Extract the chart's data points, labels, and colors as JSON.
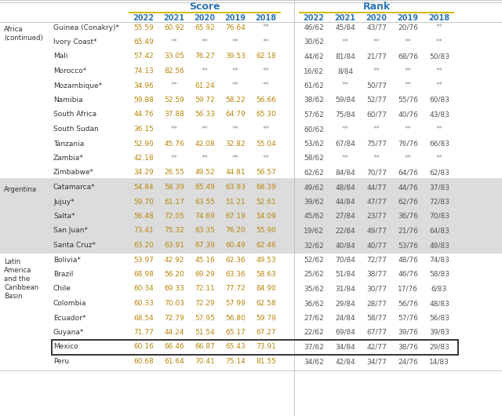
{
  "title_score": "Score",
  "title_rank": "Rank",
  "years": [
    "2022",
    "2021",
    "2020",
    "2019",
    "2018"
  ],
  "header_color": "#2E75B6",
  "bg_color": "#FFFFFF",
  "argentina_bg": "#DCDCDC",
  "rows": [
    {
      "region": "Africa\n(continued)",
      "country": "Guinea (Conakry)*",
      "scores": [
        "55.59",
        "60.92",
        "65.92",
        "76.64",
        "**"
      ],
      "ranks": [
        "46/62",
        "45/84",
        "43/77",
        "20/76",
        "**"
      ],
      "highlight": false,
      "mexico": false
    },
    {
      "region": "",
      "country": "Ivory Coast*",
      "scores": [
        "65.49",
        "**",
        "**",
        "**",
        "**"
      ],
      "ranks": [
        "30/62",
        "**",
        "**",
        "**",
        "**"
      ],
      "highlight": false,
      "mexico": false
    },
    {
      "region": "",
      "country": "Mali",
      "scores": [
        "57.42",
        "33.05",
        "76.27",
        "39.53",
        "62.18"
      ],
      "ranks": [
        "44/62",
        "81/84",
        "21/77",
        "68/76",
        "50/83"
      ],
      "highlight": false,
      "mexico": false
    },
    {
      "region": "",
      "country": "Morocco*",
      "scores": [
        "74.13",
        "82.56",
        "**",
        "**",
        "**"
      ],
      "ranks": [
        "16/62",
        "8/84",
        "**",
        "**",
        "**"
      ],
      "highlight": false,
      "mexico": false
    },
    {
      "region": "",
      "country": "Mozambique*",
      "scores": [
        "34.96",
        "**",
        "61.24",
        "**",
        "**"
      ],
      "ranks": [
        "61/62",
        "**",
        "50/77",
        "**",
        "**"
      ],
      "highlight": false,
      "mexico": false
    },
    {
      "region": "",
      "country": "Namibia",
      "scores": [
        "59.88",
        "52.59",
        "59.72",
        "58.22",
        "56.66"
      ],
      "ranks": [
        "38/62",
        "59/84",
        "52/77",
        "55/76",
        "60/83"
      ],
      "highlight": false,
      "mexico": false
    },
    {
      "region": "",
      "country": "South Africa",
      "scores": [
        "44.76",
        "37.88",
        "56.33",
        "64.79",
        "65.30"
      ],
      "ranks": [
        "57/62",
        "75/84",
        "60/77",
        "40/76",
        "43/83"
      ],
      "highlight": false,
      "mexico": false
    },
    {
      "region": "",
      "country": "South Sudan",
      "scores": [
        "36.15",
        "**",
        "**",
        "**",
        "**"
      ],
      "ranks": [
        "60/62",
        "**",
        "**",
        "**",
        "**"
      ],
      "highlight": false,
      "mexico": false
    },
    {
      "region": "",
      "country": "Tanzania",
      "scores": [
        "52.90",
        "45.76",
        "42.08",
        "32.82",
        "55.04"
      ],
      "ranks": [
        "53/62",
        "67/84",
        "75/77",
        "76/76",
        "66/83"
      ],
      "highlight": false,
      "mexico": false
    },
    {
      "region": "",
      "country": "Zambia*",
      "scores": [
        "42.18",
        "**",
        "**",
        "**",
        "**"
      ],
      "ranks": [
        "58/62",
        "**",
        "**",
        "**",
        "**"
      ],
      "highlight": false,
      "mexico": false
    },
    {
      "region": "",
      "country": "Zimbabwe*",
      "scores": [
        "34.29",
        "26.55",
        "49.52",
        "44.81",
        "56.57"
      ],
      "ranks": [
        "62/62",
        "84/84",
        "70/77",
        "64/76",
        "62/83"
      ],
      "highlight": false,
      "mexico": false
    },
    {
      "region": "Argentina",
      "country": "Catamarca*",
      "scores": [
        "54.84",
        "58.39",
        "65.49",
        "63.93",
        "68.39"
      ],
      "ranks": [
        "49/62",
        "48/84",
        "44/77",
        "44/76",
        "37/83"
      ],
      "highlight": true,
      "mexico": false
    },
    {
      "region": "",
      "country": "Jujuy*",
      "scores": [
        "59.70",
        "61.17",
        "63.55",
        "51.21",
        "52.61"
      ],
      "ranks": [
        "39/62",
        "44/84",
        "47/77",
        "62/76",
        "72/83"
      ],
      "highlight": true,
      "mexico": false
    },
    {
      "region": "",
      "country": "Salta*",
      "scores": [
        "56.48",
        "72.05",
        "74.69",
        "67.19",
        "54.09"
      ],
      "ranks": [
        "45/62",
        "27/84",
        "23/77",
        "36/76",
        "70/83"
      ],
      "highlight": true,
      "mexico": false
    },
    {
      "region": "",
      "country": "San Juan*",
      "scores": [
        "73.41",
        "75.32",
        "63.35",
        "76.20",
        "55.90"
      ],
      "ranks": [
        "19/62",
        "22/84",
        "49/77",
        "21/76",
        "64/83"
      ],
      "highlight": true,
      "mexico": false
    },
    {
      "region": "",
      "country": "Santa Cruz*",
      "scores": [
        "63.20",
        "63.91",
        "67.39",
        "60.49",
        "62.46"
      ],
      "ranks": [
        "32/62",
        "40/84",
        "40/77",
        "53/76",
        "49/83"
      ],
      "highlight": true,
      "mexico": false
    },
    {
      "region": "Latin\nAmerica\nand the\nCaribbean\nBasin",
      "country": "Bolivia*",
      "scores": [
        "53.97",
        "42.92",
        "45.16",
        "62.36",
        "49.53"
      ],
      "ranks": [
        "52/62",
        "70/84",
        "72/77",
        "48/76",
        "74/83"
      ],
      "highlight": false,
      "mexico": false
    },
    {
      "region": "",
      "country": "Brazil",
      "scores": [
        "68.98",
        "56.20",
        "69.29",
        "63.36",
        "58.63"
      ],
      "ranks": [
        "25/62",
        "51/84",
        "38/77",
        "46/76",
        "58/83"
      ],
      "highlight": false,
      "mexico": false
    },
    {
      "region": "",
      "country": "Chile",
      "scores": [
        "60.34",
        "69.33",
        "72.11",
        "77.72",
        "84.90"
      ],
      "ranks": [
        "35/62",
        "31/84",
        "30/77",
        "17/76",
        "6/83"
      ],
      "highlight": false,
      "mexico": false
    },
    {
      "region": "",
      "country": "Colombia",
      "scores": [
        "60.33",
        "70.03",
        "72.29",
        "57.99",
        "62.58"
      ],
      "ranks": [
        "36/62",
        "29/84",
        "28/77",
        "56/76",
        "48/83"
      ],
      "highlight": false,
      "mexico": false
    },
    {
      "region": "",
      "country": "Ecuador*",
      "scores": [
        "68.54",
        "72.79",
        "57.95",
        "56.80",
        "59.79"
      ],
      "ranks": [
        "27/62",
        "24/84",
        "58/77",
        "57/76",
        "56/83"
      ],
      "highlight": false,
      "mexico": false
    },
    {
      "region": "",
      "country": "Guyana*",
      "scores": [
        "71.77",
        "44.24",
        "51.54",
        "65.17",
        "67.27"
      ],
      "ranks": [
        "22/62",
        "69/84",
        "67/77",
        "39/76",
        "39/83"
      ],
      "highlight": false,
      "mexico": false
    },
    {
      "region": "",
      "country": "Mexico",
      "scores": [
        "60.16",
        "66.46",
        "66.87",
        "65.43",
        "73.91"
      ],
      "ranks": [
        "37/62",
        "34/84",
        "42/77",
        "38/76",
        "29/83"
      ],
      "highlight": false,
      "mexico": true
    },
    {
      "region": "",
      "country": "Peru",
      "scores": [
        "60.68",
        "61.64",
        "70.41",
        "75.14",
        "81.55"
      ],
      "ranks": [
        "34/62",
        "42/84",
        "34/77",
        "24/76",
        "14/83"
      ],
      "highlight": false,
      "mexico": false
    }
  ]
}
